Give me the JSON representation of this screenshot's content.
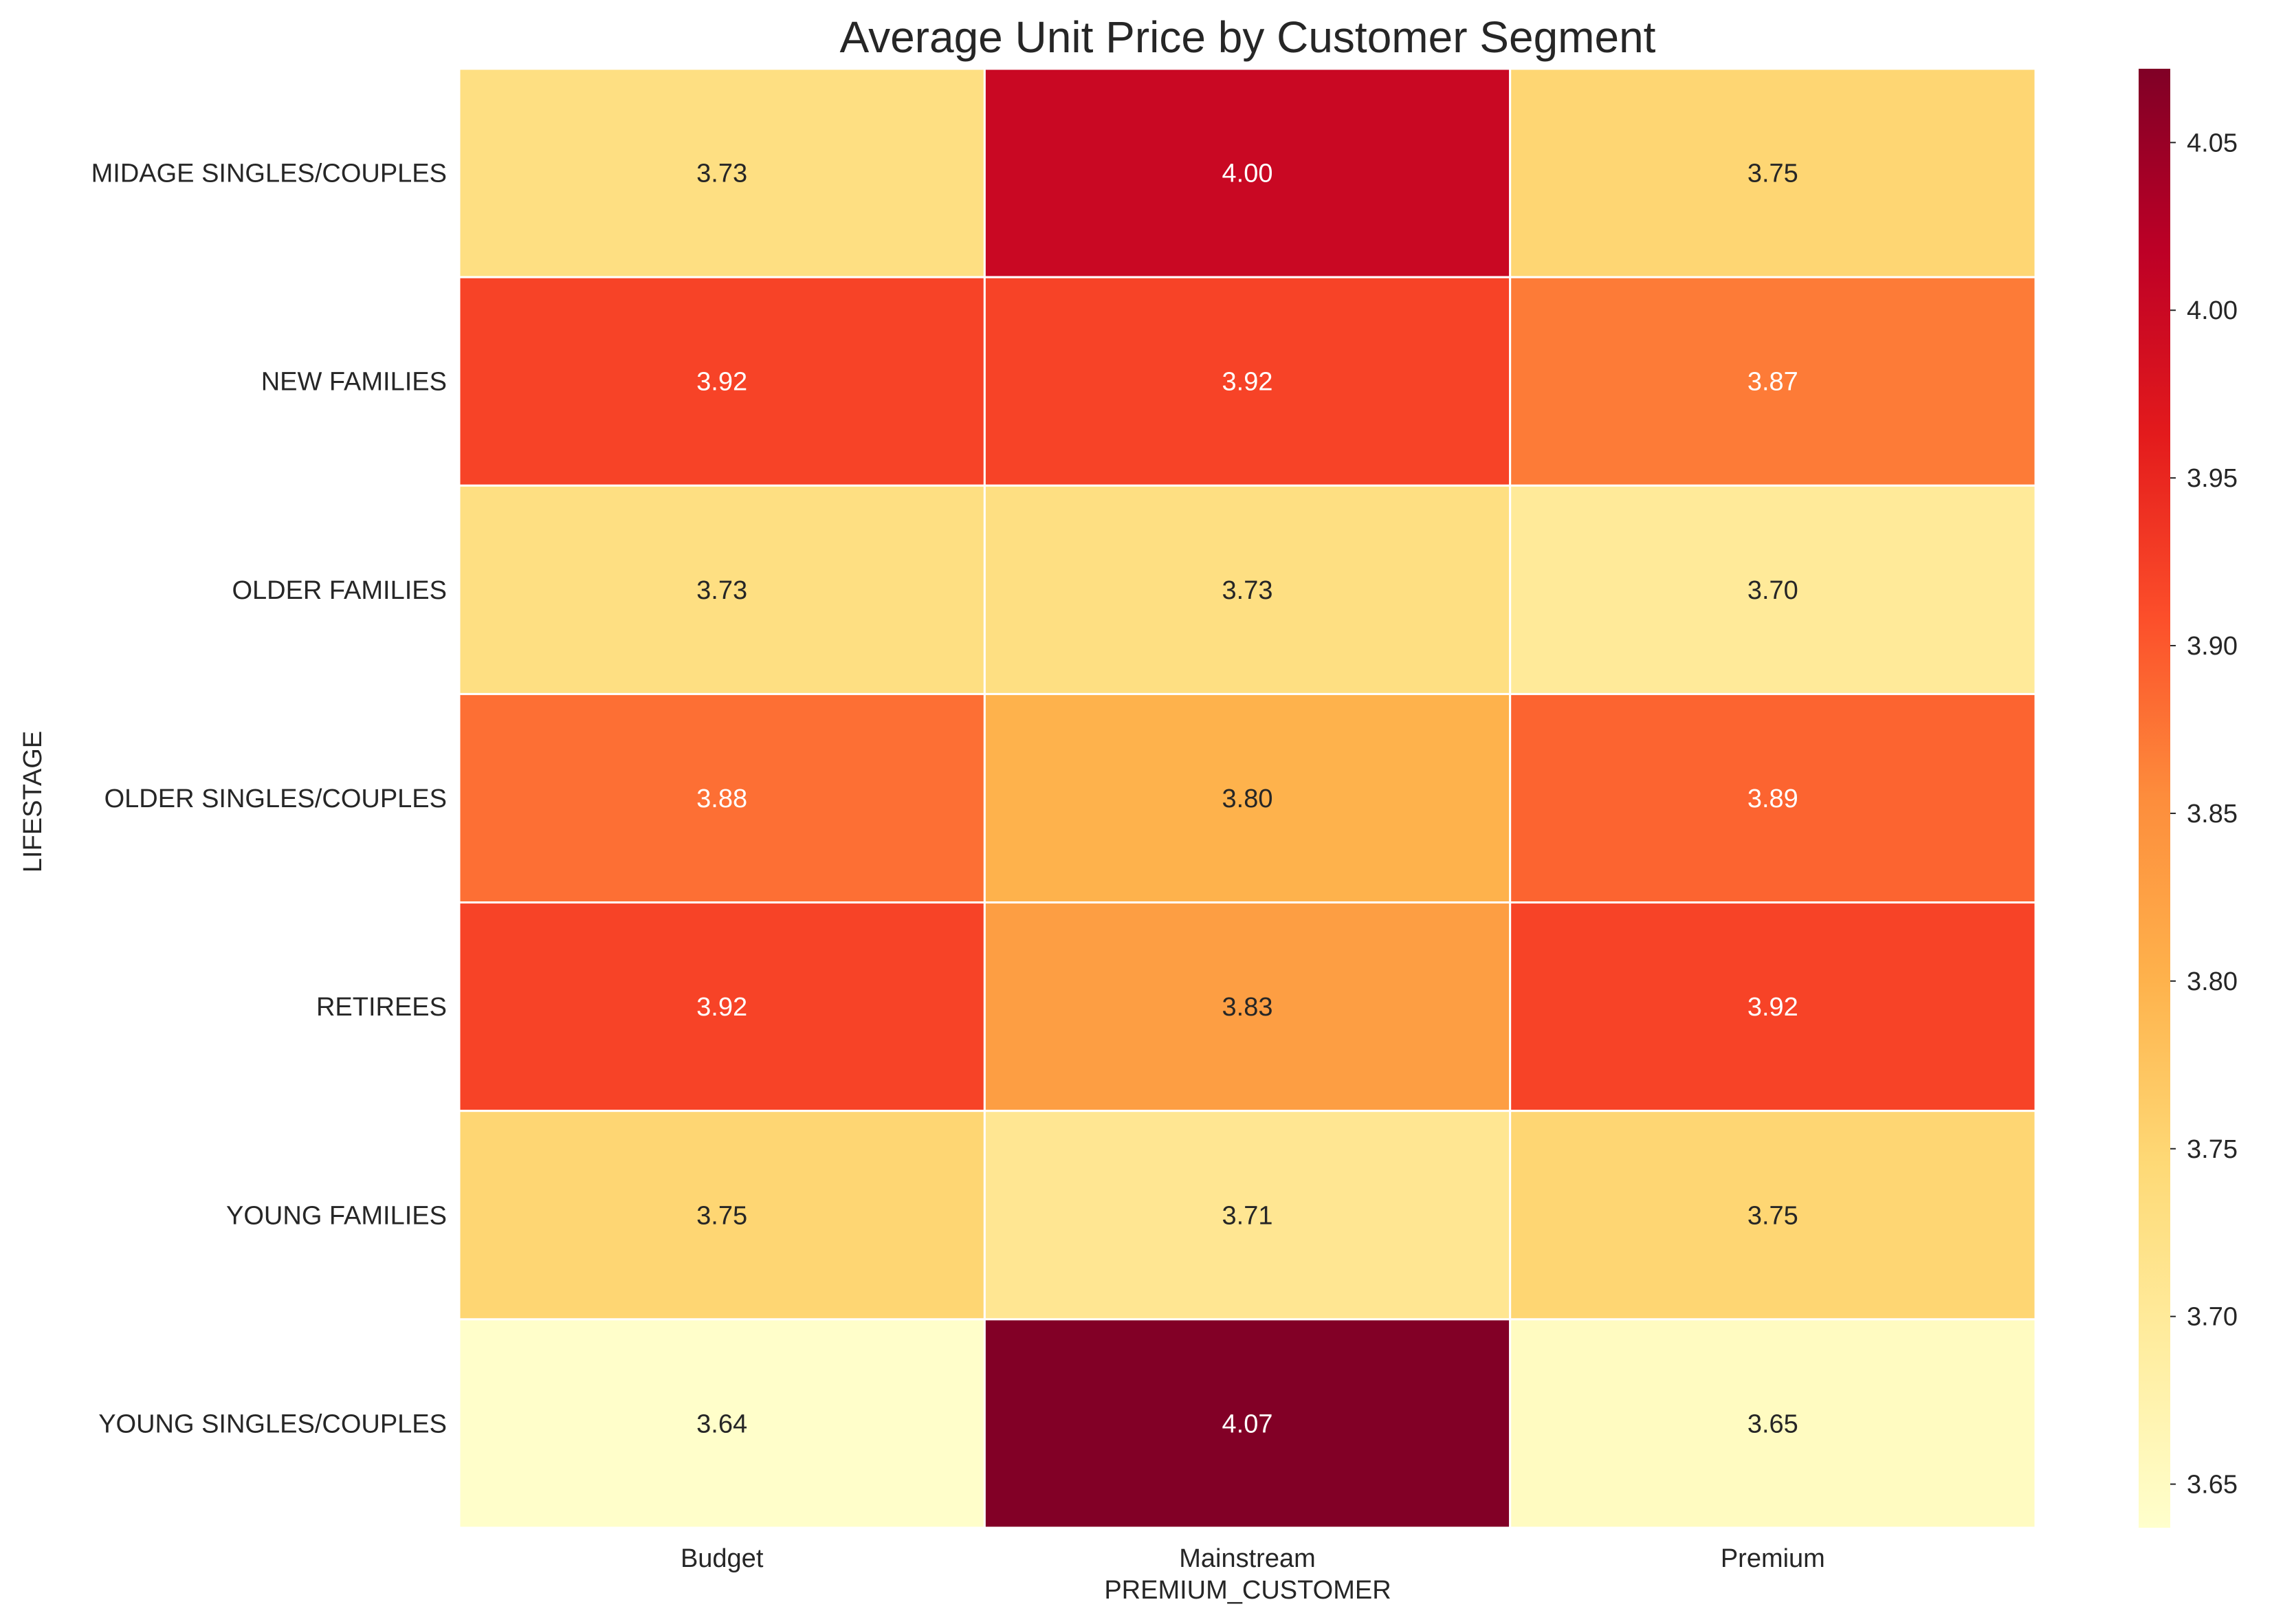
{
  "chart_data": {
    "type": "heatmap",
    "title": "Average Unit Price by Customer Segment",
    "xlabel": "PREMIUM_CUSTOMER",
    "ylabel": "LIFESTAGE",
    "x_categories": [
      "Budget",
      "Mainstream",
      "Premium"
    ],
    "y_categories": [
      "MIDAGE SINGLES/COUPLES",
      "NEW FAMILIES",
      "OLDER FAMILIES",
      "OLDER SINGLES/COUPLES",
      "RETIREES",
      "YOUNG FAMILIES",
      "YOUNG SINGLES/COUPLES"
    ],
    "values": [
      [
        3.73,
        4.0,
        3.75
      ],
      [
        3.92,
        3.92,
        3.87
      ],
      [
        3.73,
        3.73,
        3.7
      ],
      [
        3.88,
        3.8,
        3.89
      ],
      [
        3.92,
        3.83,
        3.92
      ],
      [
        3.75,
        3.71,
        3.75
      ],
      [
        3.64,
        4.07,
        3.65
      ]
    ],
    "value_format": "2 decimals",
    "colormap": "YlOrRd",
    "colorbar": {
      "vmin": 3.637,
      "vmax": 4.072,
      "ticks": [
        3.65,
        3.7,
        3.75,
        3.8,
        3.85,
        3.9,
        3.95,
        4.0,
        4.05
      ],
      "tick_labels": [
        "3.65",
        "3.70",
        "3.75",
        "3.80",
        "3.85",
        "3.90",
        "3.95",
        "4.00",
        "4.05"
      ],
      "placement": "right"
    },
    "grid": false
  }
}
